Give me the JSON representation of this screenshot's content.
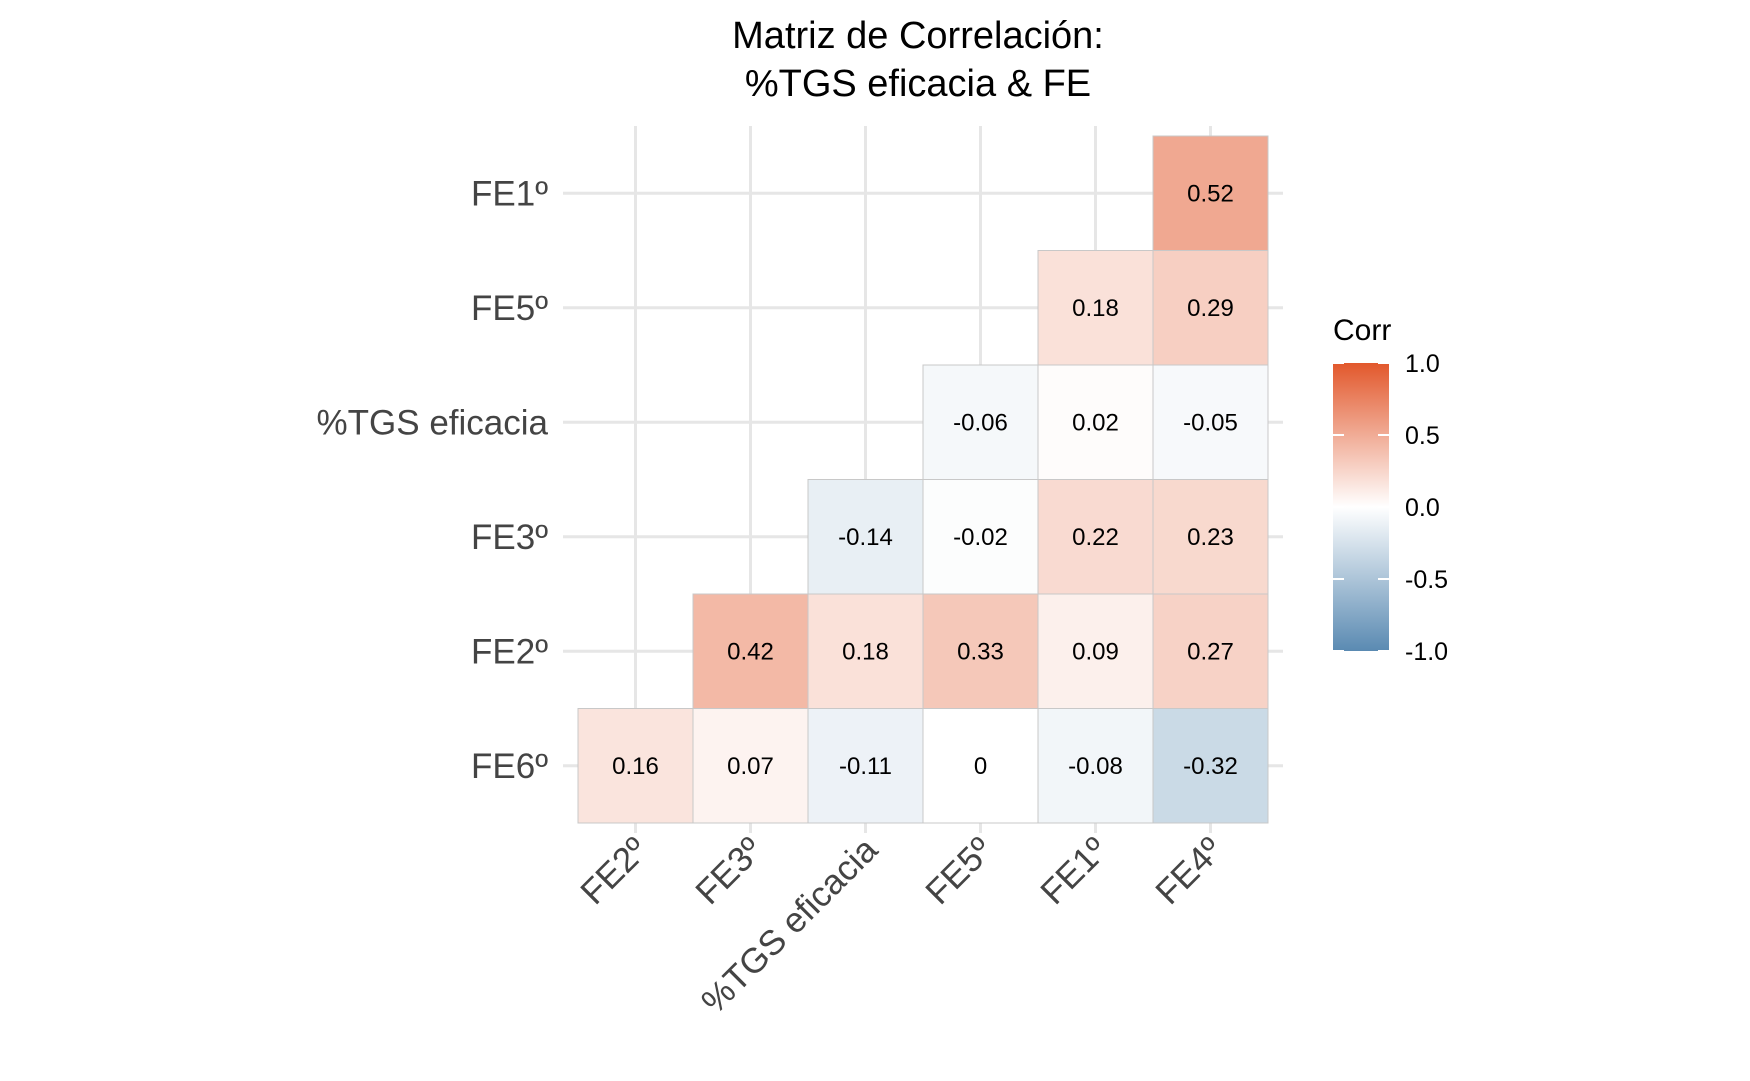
{
  "chart_data": {
    "type": "heatmap",
    "title_lines": [
      "Matriz de Correlación:",
      "%TGS eficacia & FE"
    ],
    "x_categories": [
      "FE2º",
      "FE3º",
      "%TGS eficacia",
      "FE5º",
      "FE1º",
      "FE4º"
    ],
    "y_categories": [
      "FE6º",
      "FE2º",
      "FE3º",
      "%TGS eficacia",
      "FE5º",
      "FE1º"
    ],
    "cells": [
      {
        "x": "FE2º",
        "y": "FE6º",
        "value": 0.16,
        "label": "0.16"
      },
      {
        "x": "FE3º",
        "y": "FE6º",
        "value": 0.07,
        "label": "0.07"
      },
      {
        "x": "%TGS eficacia",
        "y": "FE6º",
        "value": -0.11,
        "label": "-0.11"
      },
      {
        "x": "FE5º",
        "y": "FE6º",
        "value": 0,
        "label": "0"
      },
      {
        "x": "FE1º",
        "y": "FE6º",
        "value": -0.08,
        "label": "-0.08"
      },
      {
        "x": "FE4º",
        "y": "FE6º",
        "value": -0.32,
        "label": "-0.32"
      },
      {
        "x": "FE3º",
        "y": "FE2º",
        "value": 0.42,
        "label": "0.42"
      },
      {
        "x": "%TGS eficacia",
        "y": "FE2º",
        "value": 0.18,
        "label": "0.18"
      },
      {
        "x": "FE5º",
        "y": "FE2º",
        "value": 0.33,
        "label": "0.33"
      },
      {
        "x": "FE1º",
        "y": "FE2º",
        "value": 0.09,
        "label": "0.09"
      },
      {
        "x": "FE4º",
        "y": "FE2º",
        "value": 0.27,
        "label": "0.27"
      },
      {
        "x": "%TGS eficacia",
        "y": "FE3º",
        "value": -0.14,
        "label": "-0.14"
      },
      {
        "x": "FE5º",
        "y": "FE3º",
        "value": -0.02,
        "label": "-0.02"
      },
      {
        "x": "FE1º",
        "y": "FE3º",
        "value": 0.22,
        "label": "0.22"
      },
      {
        "x": "FE4º",
        "y": "FE3º",
        "value": 0.23,
        "label": "0.23"
      },
      {
        "x": "FE5º",
        "y": "%TGS eficacia",
        "value": -0.06,
        "label": "-0.06"
      },
      {
        "x": "FE1º",
        "y": "%TGS eficacia",
        "value": 0.02,
        "label": "0.02"
      },
      {
        "x": "FE4º",
        "y": "%TGS eficacia",
        "value": -0.05,
        "label": "-0.05"
      },
      {
        "x": "FE1º",
        "y": "FE5º",
        "value": 0.18,
        "label": "0.18"
      },
      {
        "x": "FE4º",
        "y": "FE5º",
        "value": 0.29,
        "label": "0.29"
      },
      {
        "x": "FE4º",
        "y": "FE1º",
        "value": 0.52,
        "label": "0.52"
      }
    ],
    "legend": {
      "title": "Corr",
      "ticks": [
        "1.0",
        "0.5",
        "0.0",
        "-0.5",
        "-1.0"
      ],
      "range": [
        -1,
        1
      ],
      "placement": "right"
    },
    "colors": {
      "high": "#E2582C",
      "mid": "#FFFFFF",
      "low": "#5A8AB2",
      "grid": "#E6E6E6",
      "cell_border": "#C8C8C8"
    },
    "grid": true
  }
}
